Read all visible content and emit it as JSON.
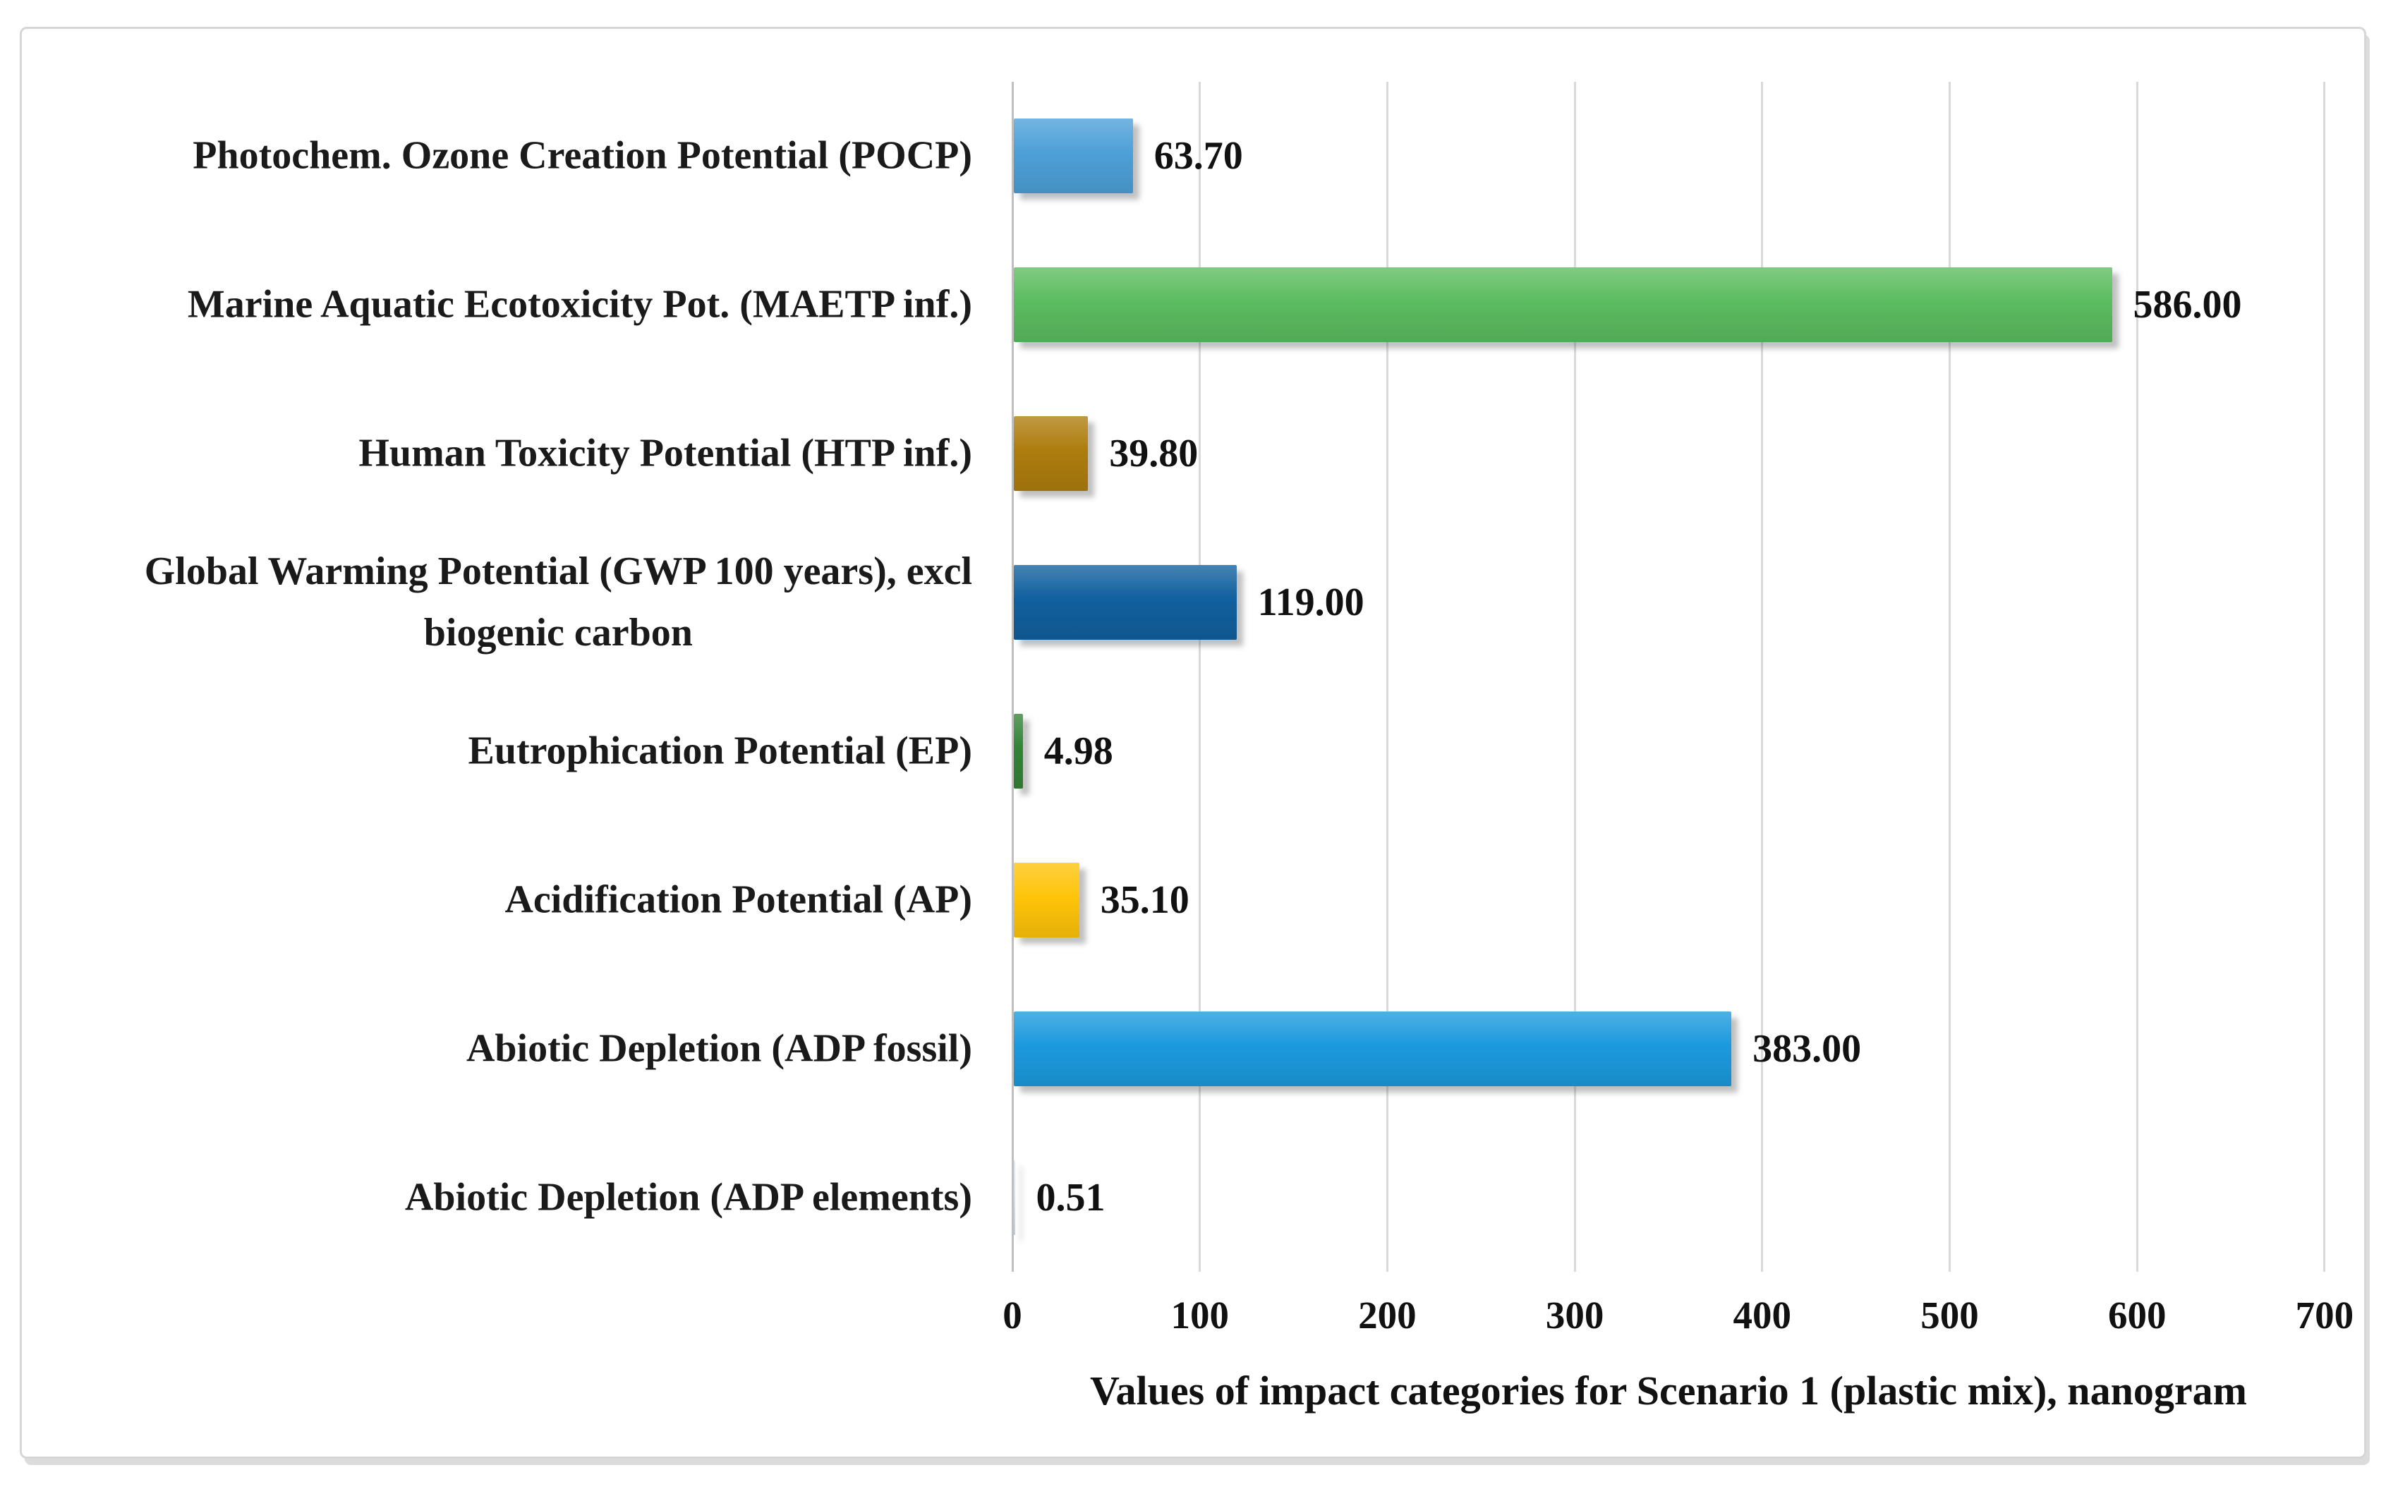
{
  "chart_data": {
    "type": "bar",
    "orientation": "horizontal",
    "title": "",
    "xlabel": "Values of impact categories for Scenario 1 (plastic mix), nanogram",
    "ylabel": "",
    "xlim": [
      0,
      700
    ],
    "x_ticks": [
      0,
      100,
      200,
      300,
      400,
      500,
      600,
      700
    ],
    "grid": true,
    "legend": false,
    "categories": [
      "Photochem. Ozone Creation Potential (POCP)",
      "Marine Aquatic Ecotoxicity Pot. (MAETP inf.)",
      "Human Toxicity Potential (HTP inf.)",
      "Global Warming Potential (GWP 100 years), excl biogenic carbon",
      "Eutrophication Potential (EP)",
      "Acidification Potential (AP)",
      "Abiotic Depletion (ADP fossil)",
      "Abiotic Depletion (ADP elements)"
    ],
    "category_lines": [
      [
        "Photochem. Ozone Creation Potential (POCP)"
      ],
      [
        "Marine Aquatic Ecotoxicity Pot. (MAETP inf.)"
      ],
      [
        "Human Toxicity Potential (HTP inf.)"
      ],
      [
        "Global Warming Potential (GWP 100 years), excl",
        "biogenic carbon"
      ],
      [
        "Eutrophication Potential (EP)"
      ],
      [
        "Acidification Potential (AP)"
      ],
      [
        "Abiotic Depletion (ADP fossil)"
      ],
      [
        "Abiotic Depletion (ADP elements)"
      ]
    ],
    "values": [
      63.7,
      586.0,
      39.8,
      119.0,
      4.98,
      35.1,
      383.0,
      0.51
    ],
    "value_labels": [
      "63.70",
      "586.00",
      "39.80",
      "119.00",
      "4.98",
      "35.10",
      "383.00",
      "0.51"
    ],
    "bar_colors": [
      "#4DA0D8",
      "#5CBC60",
      "#AE7D0E",
      "#11609F",
      "#338437",
      "#FFC40A",
      "#1C9ADE",
      "#D8E2EA"
    ],
    "colors": {
      "grid": "#D9D9D9",
      "axis": "#BFBFBF",
      "text": "#111111",
      "figure_border": "#D6D6D6"
    }
  }
}
